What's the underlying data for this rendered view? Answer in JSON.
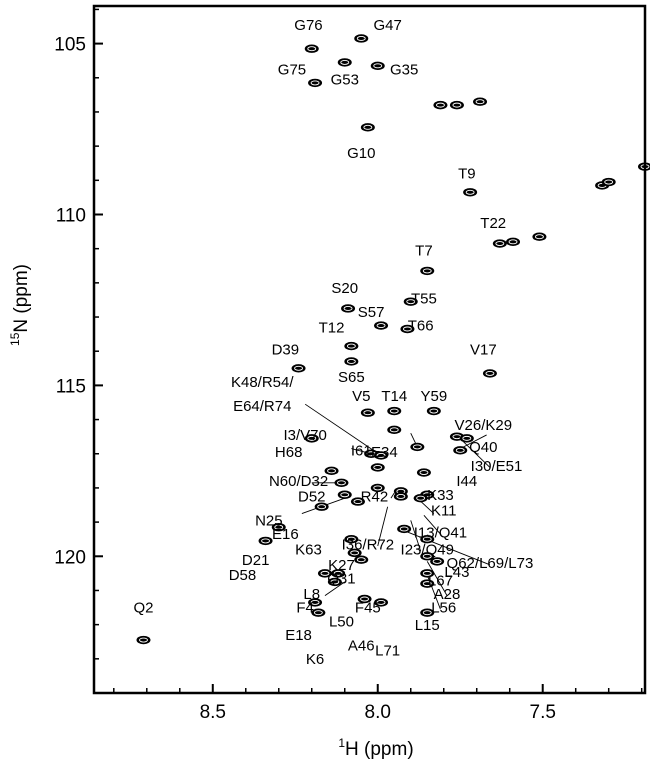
{
  "chart_data": {
    "type": "scatter",
    "title": "",
    "xlabel": {
      "sup": "1",
      "text": "H (ppm)"
    },
    "ylabel": {
      "sup": "15",
      "text": "N (ppm)"
    },
    "xlim": [
      8.86,
      7.19
    ],
    "ylim": [
      103.9,
      124.0
    ],
    "x_reversed": true,
    "y_reversed": true,
    "xticks": [
      8.5,
      8.0,
      7.5
    ],
    "xtick_labels": [
      "8.5",
      "8.0",
      "7.5"
    ],
    "yticks": [
      105,
      110,
      115,
      120
    ],
    "ytick_labels": [
      "105",
      "110",
      "115",
      "120"
    ],
    "grid": false,
    "peaks": [
      {
        "h": 8.71,
        "n": 122.45
      },
      {
        "h": 8.2,
        "n": 105.15
      },
      {
        "h": 8.05,
        "n": 104.85
      },
      {
        "h": 8.19,
        "n": 106.15
      },
      {
        "h": 8.1,
        "n": 105.55
      },
      {
        "h": 8.0,
        "n": 105.65
      },
      {
        "h": 7.81,
        "n": 106.8
      },
      {
        "h": 7.76,
        "n": 106.8
      },
      {
        "h": 7.69,
        "n": 106.7
      },
      {
        "h": 8.03,
        "n": 107.45
      },
      {
        "h": 7.72,
        "n": 109.35
      },
      {
        "h": 7.32,
        "n": 109.15
      },
      {
        "h": 7.3,
        "n": 109.05
      },
      {
        "h": 7.19,
        "n": 108.6
      },
      {
        "h": 7.63,
        "n": 110.85
      },
      {
        "h": 7.59,
        "n": 110.8
      },
      {
        "h": 7.51,
        "n": 110.65
      },
      {
        "h": 7.85,
        "n": 111.65
      },
      {
        "h": 8.09,
        "n": 112.75
      },
      {
        "h": 7.9,
        "n": 112.55
      },
      {
        "h": 7.99,
        "n": 113.25
      },
      {
        "h": 7.91,
        "n": 113.35
      },
      {
        "h": 8.08,
        "n": 113.85
      },
      {
        "h": 8.08,
        "n": 114.3
      },
      {
        "h": 8.24,
        "n": 114.5
      },
      {
        "h": 7.66,
        "n": 114.65
      },
      {
        "h": 8.03,
        "n": 115.8
      },
      {
        "h": 7.95,
        "n": 115.75
      },
      {
        "h": 7.83,
        "n": 115.75
      },
      {
        "h": 7.95,
        "n": 116.3
      },
      {
        "h": 7.76,
        "n": 116.5
      },
      {
        "h": 7.73,
        "n": 116.55
      },
      {
        "h": 7.75,
        "n": 116.9
      },
      {
        "h": 8.2,
        "n": 116.55
      },
      {
        "h": 8.02,
        "n": 117.0
      },
      {
        "h": 7.99,
        "n": 117.05
      },
      {
        "h": 7.88,
        "n": 116.8
      },
      {
        "h": 8.0,
        "n": 117.4
      },
      {
        "h": 8.14,
        "n": 117.5
      },
      {
        "h": 8.11,
        "n": 117.85
      },
      {
        "h": 7.86,
        "n": 117.55
      },
      {
        "h": 8.0,
        "n": 118.0
      },
      {
        "h": 7.93,
        "n": 118.1
      },
      {
        "h": 7.85,
        "n": 118.2
      },
      {
        "h": 8.1,
        "n": 118.2
      },
      {
        "h": 8.06,
        "n": 118.4
      },
      {
        "h": 7.93,
        "n": 118.25
      },
      {
        "h": 7.87,
        "n": 118.3
      },
      {
        "h": 8.17,
        "n": 118.55
      },
      {
        "h": 8.3,
        "n": 119.15
      },
      {
        "h": 7.92,
        "n": 119.2
      },
      {
        "h": 8.34,
        "n": 119.55
      },
      {
        "h": 8.08,
        "n": 119.5
      },
      {
        "h": 7.85,
        "n": 119.5
      },
      {
        "h": 8.07,
        "n": 119.9
      },
      {
        "h": 8.05,
        "n": 120.1
      },
      {
        "h": 7.85,
        "n": 120.0
      },
      {
        "h": 7.82,
        "n": 120.15
      },
      {
        "h": 8.16,
        "n": 120.5
      },
      {
        "h": 8.12,
        "n": 120.5
      },
      {
        "h": 7.85,
        "n": 120.5
      },
      {
        "h": 8.13,
        "n": 120.75
      },
      {
        "h": 7.85,
        "n": 120.8
      },
      {
        "h": 8.19,
        "n": 121.35
      },
      {
        "h": 8.18,
        "n": 121.65
      },
      {
        "h": 8.04,
        "n": 121.25
      },
      {
        "h": 7.99,
        "n": 121.35
      },
      {
        "h": 7.85,
        "n": 121.65
      }
    ],
    "labels": [
      {
        "text": "G76",
        "h": 8.21,
        "n": 104.6
      },
      {
        "text": "G47",
        "h": 7.97,
        "n": 104.6
      },
      {
        "text": "G75",
        "h": 8.26,
        "n": 105.9
      },
      {
        "text": "G53",
        "h": 8.1,
        "n": 106.2
      },
      {
        "text": "G35",
        "h": 7.92,
        "n": 105.9
      },
      {
        "text": "G10",
        "h": 8.05,
        "n": 108.35
      },
      {
        "text": "T9",
        "h": 7.73,
        "n": 108.95
      },
      {
        "text": "T22",
        "h": 7.65,
        "n": 110.4
      },
      {
        "text": "T7",
        "h": 7.86,
        "n": 111.2
      },
      {
        "text": "S20",
        "h": 8.1,
        "n": 112.3
      },
      {
        "text": "T55",
        "h": 7.86,
        "n": 112.6
      },
      {
        "text": "S57",
        "h": 8.02,
        "n": 113.0
      },
      {
        "text": "T66",
        "h": 7.87,
        "n": 113.4
      },
      {
        "text": "T12",
        "h": 8.14,
        "n": 113.45
      },
      {
        "text": "D39",
        "h": 8.28,
        "n": 114.1
      },
      {
        "text": "V17",
        "h": 7.68,
        "n": 114.1
      },
      {
        "text": "S65",
        "h": 8.08,
        "n": 114.9
      },
      {
        "text": "K48/R54/",
        "h": 8.35,
        "n": 115.05
      },
      {
        "text": "E64/R74",
        "h": 8.35,
        "n": 115.75
      },
      {
        "text": "V5",
        "h": 8.05,
        "n": 115.45
      },
      {
        "text": "T14",
        "h": 7.95,
        "n": 115.45
      },
      {
        "text": "Y59",
        "h": 7.83,
        "n": 115.45
      },
      {
        "text": "V26/K29",
        "h": 7.68,
        "n": 116.3
      },
      {
        "text": "I3/V70",
        "h": 8.22,
        "n": 116.6
      },
      {
        "text": "Q40",
        "h": 7.68,
        "n": 116.95
      },
      {
        "text": "I61",
        "h": 8.05,
        "n": 117.05
      },
      {
        "text": "E34",
        "h": 7.98,
        "n": 117.1
      },
      {
        "text": "I30/E51",
        "h": 7.64,
        "n": 117.5
      },
      {
        "text": "H68",
        "h": 8.27,
        "n": 117.1
      },
      {
        "text": "N60/D32",
        "h": 8.24,
        "n": 117.95
      },
      {
        "text": "I44",
        "h": 7.73,
        "n": 117.95
      },
      {
        "text": "K33",
        "h": 7.81,
        "n": 118.35
      },
      {
        "text": "D52",
        "h": 8.2,
        "n": 118.4
      },
      {
        "text": "R42",
        "h": 8.01,
        "n": 118.4
      },
      {
        "text": "K11",
        "h": 7.8,
        "n": 118.8
      },
      {
        "text": "N25",
        "h": 8.33,
        "n": 119.1
      },
      {
        "text": "E16",
        "h": 8.28,
        "n": 119.5
      },
      {
        "text": "I13/Q41",
        "h": 7.81,
        "n": 119.45
      },
      {
        "text": "I36/R72",
        "h": 8.03,
        "n": 119.8
      },
      {
        "text": "K63",
        "h": 8.21,
        "n": 119.95
      },
      {
        "text": "I23/Q49",
        "h": 7.85,
        "n": 119.95
      },
      {
        "text": "D21",
        "h": 8.37,
        "n": 120.25
      },
      {
        "text": "Q62/L69/L73",
        "h": 7.66,
        "n": 120.35
      },
      {
        "text": "K27",
        "h": 8.11,
        "n": 120.4
      },
      {
        "text": "L43",
        "h": 7.76,
        "n": 120.6
      },
      {
        "text": "D58",
        "h": 8.41,
        "n": 120.7
      },
      {
        "text": "Q31",
        "h": 8.11,
        "n": 120.8
      },
      {
        "text": "L67",
        "h": 7.81,
        "n": 120.85
      },
      {
        "text": "L8",
        "h": 8.2,
        "n": 121.25
      },
      {
        "text": "A28",
        "h": 7.79,
        "n": 121.25
      },
      {
        "text": "F4",
        "h": 8.22,
        "n": 121.65
      },
      {
        "text": "F45",
        "h": 8.03,
        "n": 121.65
      },
      {
        "text": "L56",
        "h": 7.8,
        "n": 121.65
      },
      {
        "text": "L50",
        "h": 8.11,
        "n": 122.05
      },
      {
        "text": "L15",
        "h": 7.85,
        "n": 122.15
      },
      {
        "text": "E18",
        "h": 8.24,
        "n": 122.45
      },
      {
        "text": "A46",
        "h": 8.05,
        "n": 122.75
      },
      {
        "text": "L71",
        "h": 7.97,
        "n": 122.9
      },
      {
        "text": "K6",
        "h": 8.19,
        "n": 123.15
      },
      {
        "text": "Q2",
        "h": 8.71,
        "n": 121.65
      }
    ],
    "leader_lines": [
      {
        "from": [
          8.22,
          115.55
        ],
        "to": [
          7.99,
          117.05
        ]
      },
      {
        "from": [
          8.08,
          116.85
        ],
        "to": [
          8.0,
          117.05
        ]
      },
      {
        "from": [
          7.9,
          116.4
        ],
        "to": [
          7.88,
          116.8
        ]
      },
      {
        "from": [
          7.67,
          116.45
        ],
        "to": [
          7.75,
          116.85
        ]
      },
      {
        "from": [
          7.66,
          117.4
        ],
        "to": [
          7.74,
          116.65
        ]
      },
      {
        "from": [
          8.2,
          117.85
        ],
        "to": [
          8.11,
          117.85
        ]
      },
      {
        "from": [
          7.96,
          118.3
        ],
        "to": [
          7.95,
          118.15
        ]
      },
      {
        "from": [
          7.83,
          118.75
        ],
        "to": [
          7.88,
          118.3
        ]
      },
      {
        "from": [
          8.23,
          118.75
        ],
        "to": [
          8.1,
          118.3
        ]
      },
      {
        "from": [
          7.81,
          119.35
        ],
        "to": [
          7.86,
          118.8
        ]
      },
      {
        "from": [
          8.0,
          119.7
        ],
        "to": [
          7.97,
          118.55
        ]
      },
      {
        "from": [
          7.87,
          119.85
        ],
        "to": [
          7.9,
          118.95
        ]
      },
      {
        "from": [
          7.66,
          120.25
        ],
        "to": [
          7.92,
          119.25
        ]
      },
      {
        "from": [
          8.16,
          121.15
        ],
        "to": [
          8.1,
          120.75
        ]
      },
      {
        "from": [
          7.79,
          121.15
        ],
        "to": [
          7.85,
          120.15
        ]
      },
      {
        "from": [
          7.81,
          121.55
        ],
        "to": [
          7.85,
          120.55
        ]
      }
    ]
  }
}
